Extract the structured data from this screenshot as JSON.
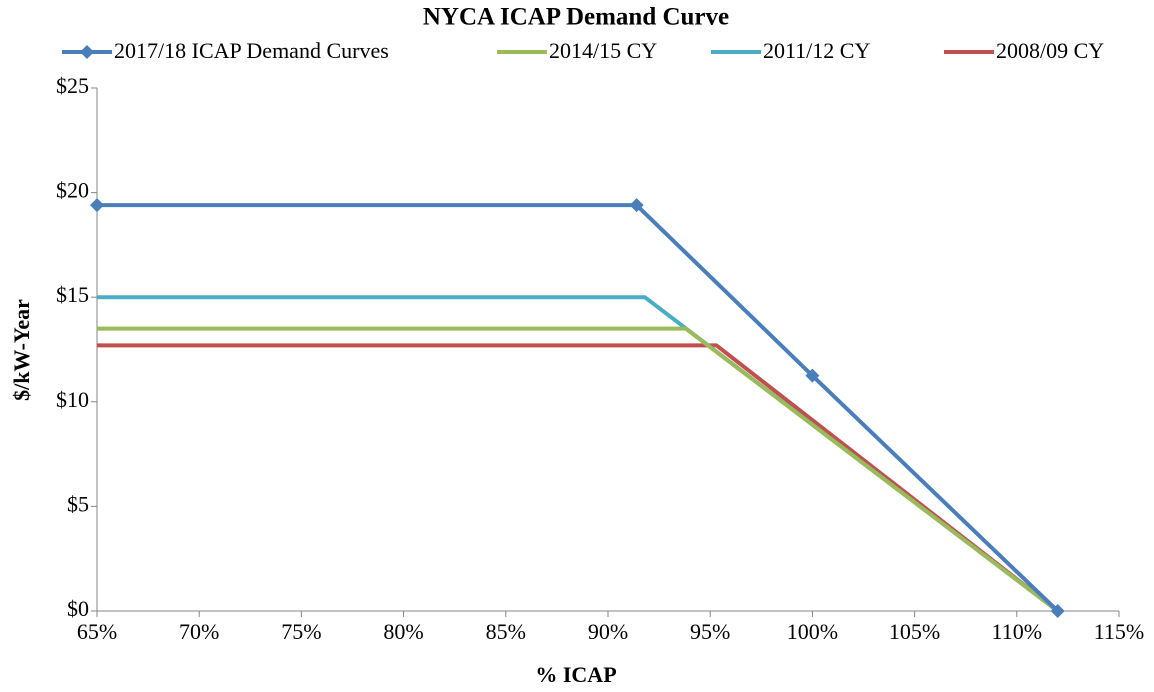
{
  "chart_data": {
    "type": "line",
    "title": "NYCA ICAP Demand Curve",
    "xlabel": "% ICAP",
    "ylabel": "$/kW-Year",
    "series": [
      {
        "name": "2017/18 ICAP Demand Curves",
        "color": "#4a7ebb",
        "marker": "diamond",
        "x": [
          65,
          91.4,
          100,
          112
        ],
        "values": [
          19.4,
          19.4,
          11.25,
          0
        ]
      },
      {
        "name": "2014/15 CY",
        "color": "#9bbb59",
        "x": [
          65,
          93.8,
          112
        ],
        "values": [
          13.5,
          13.5,
          0
        ]
      },
      {
        "name": "2011/12 CY",
        "color": "#4bacc6",
        "x": [
          65,
          91.8,
          112
        ],
        "values": [
          15,
          15,
          0
        ]
      },
      {
        "name": "2008/09 CY",
        "color": "#c0504d",
        "x": [
          65,
          95.3,
          112
        ],
        "values": [
          12.7,
          12.7,
          0
        ]
      }
    ],
    "xlim": [
      65,
      115
    ],
    "xticks": [
      {
        "value": 65,
        "label": "65%"
      },
      {
        "value": 70,
        "label": "70%"
      },
      {
        "value": 75,
        "label": "75%"
      },
      {
        "value": 80,
        "label": "80%"
      },
      {
        "value": 85,
        "label": "85%"
      },
      {
        "value": 90,
        "label": "90%"
      },
      {
        "value": 95,
        "label": "95%"
      },
      {
        "value": 100,
        "label": "100%"
      },
      {
        "value": 105,
        "label": "105%"
      },
      {
        "value": 110,
        "label": "110%"
      },
      {
        "value": 115,
        "label": "115%"
      }
    ],
    "ylim": [
      0,
      25
    ],
    "yticks": [
      {
        "value": 0,
        "label": "$0"
      },
      {
        "value": 5,
        "label": "$5"
      },
      {
        "value": 10,
        "label": "$10"
      },
      {
        "value": 15,
        "label": "$15"
      },
      {
        "value": 20,
        "label": "$20"
      },
      {
        "value": 25,
        "label": "$25"
      }
    ],
    "grid": false,
    "legend": "top"
  }
}
